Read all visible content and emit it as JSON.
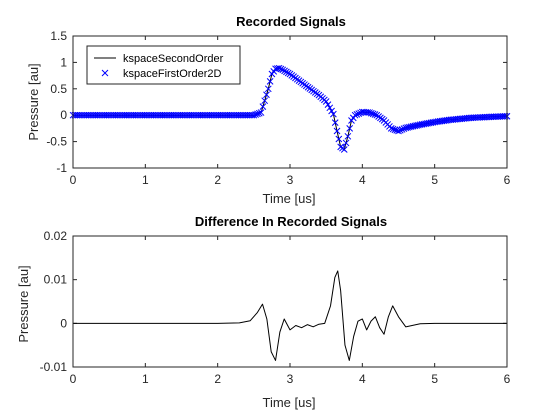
{
  "colors": {
    "axes": "#262626",
    "series_second_order": "#000000",
    "series_first_order": "#0000ff",
    "background": "#ffffff"
  },
  "chart_data": [
    {
      "type": "line",
      "title": "Recorded Signals",
      "xlabel": "Time [us]",
      "ylabel": "Pressure [au]",
      "xlim": [
        0,
        6
      ],
      "ylim": [
        -1,
        1.5
      ],
      "xticks": [
        "0",
        "1",
        "2",
        "3",
        "4",
        "5",
        "6"
      ],
      "yticks": [
        "-1",
        "-0.5",
        "0",
        "0.5",
        "1",
        "1.5"
      ],
      "grid": false,
      "legend_position": "top-left",
      "series": [
        {
          "name": "kspaceSecondOrder",
          "style": "line",
          "x": [
            0,
            1.0,
            2.0,
            2.5,
            2.6,
            2.7,
            2.75,
            2.8,
            2.85,
            2.9,
            3.0,
            3.1,
            3.2,
            3.3,
            3.4,
            3.5,
            3.6,
            3.65,
            3.7,
            3.75,
            3.8,
            3.85,
            3.9,
            4.0,
            4.1,
            4.2,
            4.3,
            4.4,
            4.5,
            4.6,
            4.8,
            5.0,
            5.2,
            5.5,
            5.8,
            6.0
          ],
          "values": [
            0,
            0,
            0,
            0,
            0.05,
            0.5,
            0.78,
            0.88,
            0.89,
            0.86,
            0.78,
            0.68,
            0.58,
            0.48,
            0.38,
            0.26,
            0.02,
            -0.3,
            -0.6,
            -0.65,
            -0.4,
            -0.1,
            0.0,
            0.06,
            0.05,
            0.0,
            -0.1,
            -0.25,
            -0.3,
            -0.24,
            -0.18,
            -0.13,
            -0.09,
            -0.05,
            -0.03,
            -0.02
          ]
        },
        {
          "name": "kspaceFirstOrder2D",
          "style": "markers",
          "x": [
            0,
            1.0,
            2.0,
            2.5,
            2.6,
            2.7,
            2.75,
            2.8,
            2.85,
            2.9,
            3.0,
            3.1,
            3.2,
            3.3,
            3.4,
            3.5,
            3.6,
            3.65,
            3.7,
            3.75,
            3.8,
            3.85,
            3.9,
            4.0,
            4.1,
            4.2,
            4.3,
            4.4,
            4.5,
            4.6,
            4.8,
            5.0,
            5.2,
            5.5,
            5.8,
            6.0
          ],
          "values": [
            0,
            0,
            0,
            0,
            0.05,
            0.5,
            0.78,
            0.88,
            0.89,
            0.86,
            0.78,
            0.68,
            0.58,
            0.48,
            0.38,
            0.26,
            0.02,
            -0.3,
            -0.6,
            -0.65,
            -0.4,
            -0.1,
            0.0,
            0.06,
            0.05,
            0.0,
            -0.1,
            -0.25,
            -0.3,
            -0.24,
            -0.18,
            -0.13,
            -0.09,
            -0.05,
            -0.03,
            -0.02
          ]
        }
      ]
    },
    {
      "type": "line",
      "title": "Difference In Recorded Signals",
      "xlabel": "Time [us]",
      "ylabel": "Pressure [au]",
      "xlim": [
        0,
        6
      ],
      "ylim": [
        -0.01,
        0.02
      ],
      "xticks": [
        "0",
        "1",
        "2",
        "3",
        "4",
        "5",
        "6"
      ],
      "yticks": [
        "-0.01",
        "0",
        "0.01",
        "0.02"
      ],
      "grid": false,
      "series": [
        {
          "x": [
            0,
            1.0,
            2.0,
            2.3,
            2.45,
            2.55,
            2.62,
            2.68,
            2.74,
            2.8,
            2.86,
            2.92,
            3.0,
            3.08,
            3.16,
            3.24,
            3.32,
            3.4,
            3.48,
            3.56,
            3.62,
            3.66,
            3.7,
            3.76,
            3.82,
            3.88,
            3.94,
            4.0,
            4.06,
            4.12,
            4.18,
            4.24,
            4.3,
            4.36,
            4.42,
            4.5,
            4.6,
            4.8,
            5.0,
            5.5,
            6.0
          ],
          "values": [
            0,
            0,
            0,
            0.0001,
            0.0006,
            0.0025,
            0.0044,
            0.001,
            -0.0065,
            -0.0085,
            -0.002,
            0.001,
            -0.0015,
            -0.0005,
            -0.001,
            -0.0003,
            -0.0008,
            -0.0002,
            0.0,
            0.004,
            0.0105,
            0.012,
            0.0075,
            -0.005,
            -0.0085,
            -0.003,
            0.0005,
            0.001,
            -0.0015,
            0.0005,
            0.0015,
            -0.001,
            -0.0025,
            0.0015,
            0.004,
            0.0015,
            -0.0008,
            -0.0001,
            0.0,
            0.0,
            0.0
          ]
        }
      ]
    }
  ]
}
